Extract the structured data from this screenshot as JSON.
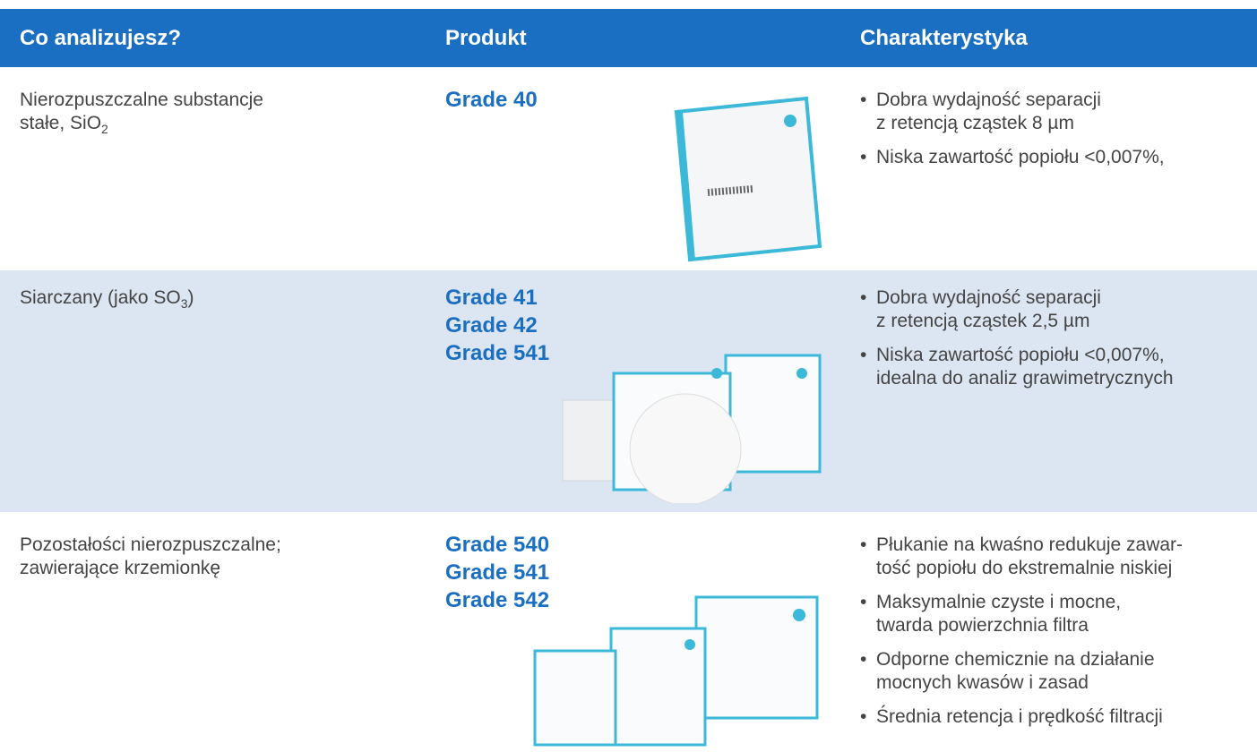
{
  "header": {
    "col1": "Co analizujesz?",
    "col2": "Produkt",
    "col3": "Charakterystyka"
  },
  "rows": [
    {
      "what": [
        {
          "text": "Nierozpuszczalne substancje"
        },
        {
          "text": "stałe, SiO",
          "sub": "2"
        }
      ],
      "products": [
        "Grade 40"
      ],
      "features": [
        [
          "Dobra wydajność separacji",
          "z retencją cząstek 8 µm"
        ],
        [
          "Niska zawartość popiołu <0,007%,"
        ]
      ]
    },
    {
      "what": [
        {
          "text": "Siarczany (jako SO",
          "sub": "3",
          "after": ")"
        }
      ],
      "products": [
        "Grade 41",
        "Grade 42",
        "Grade 541"
      ],
      "features": [
        [
          "Dobra wydajność separacji",
          "z retencją cząstek 2,5 µm"
        ],
        [
          "Niska zawartość popiołu <0,007%,",
          "idealna do analiz grawimetrycznych"
        ]
      ]
    },
    {
      "what": [
        {
          "text": "Pozostałości nierozpuszczalne;"
        },
        {
          "text": "zawierające krzemionkę"
        }
      ],
      "products": [
        "Grade 540",
        "Grade 541",
        "Grade 542"
      ],
      "features": [
        [
          "Płukanie na kwaśno redukuje zawar-",
          "tość popiołu do ekstremalnie niskiej"
        ],
        [
          "Maksymalnie czyste i mocne,",
          "twarda powierzchnia filtra"
        ],
        [
          "Odporne chemicznie na działanie",
          "mocnych kwasów i zasad"
        ],
        [
          "Średnia retencja i prędkość filtracji"
        ]
      ]
    }
  ]
}
